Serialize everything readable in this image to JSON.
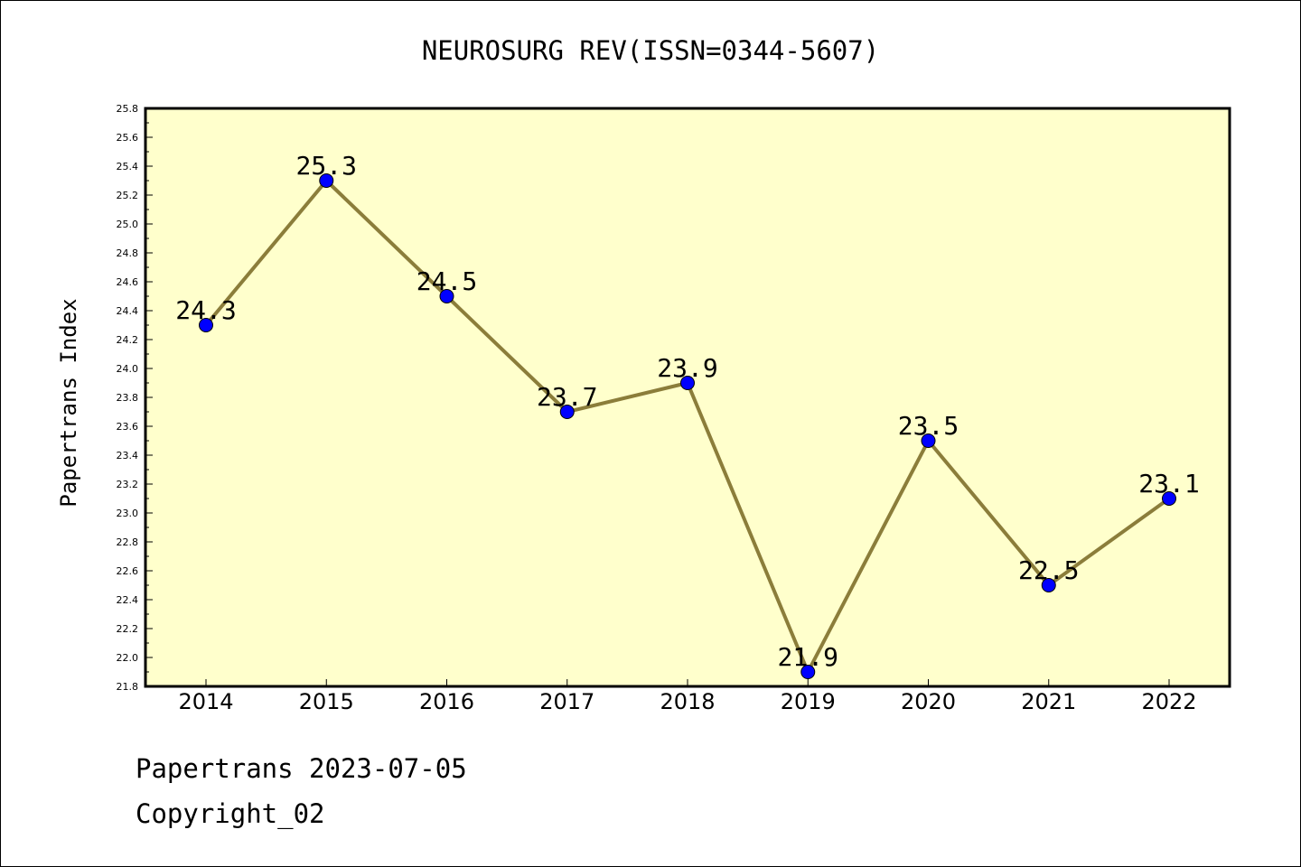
{
  "chart_data": {
    "type": "line",
    "title": "NEUROSURG REV(ISSN=0344-5607)",
    "xlabel": "",
    "ylabel": "Papertrans Index",
    "categories": [
      "2014",
      "2015",
      "2016",
      "2017",
      "2018",
      "2019",
      "2020",
      "2021",
      "2022"
    ],
    "series": [
      {
        "values": [
          24.3,
          25.3,
          24.5,
          23.7,
          23.9,
          21.9,
          23.5,
          22.5,
          23.1
        ],
        "labels": [
          "24.3",
          "25.3",
          "24.5",
          "23.7",
          "23.9",
          "21.9",
          "23.5",
          "22.5",
          "23.1"
        ]
      }
    ],
    "ylim": [
      21.8,
      25.8
    ],
    "yticks": [
      "21.8",
      "22.0",
      "22.2",
      "22.4",
      "22.6",
      "22.8",
      "23.0",
      "23.2",
      "23.4",
      "23.6",
      "23.8",
      "24.0",
      "24.2",
      "24.4",
      "24.6",
      "24.8",
      "25.0",
      "25.2",
      "25.4",
      "25.6",
      "25.8"
    ],
    "grid": false,
    "legend": "none",
    "colors": {
      "plot_background": "#ffffcc",
      "line": "#8b7d3a",
      "marker": "#0000ff"
    }
  },
  "footer": {
    "line1": "Papertrans 2023-07-05",
    "line2": "Copyright_02"
  }
}
